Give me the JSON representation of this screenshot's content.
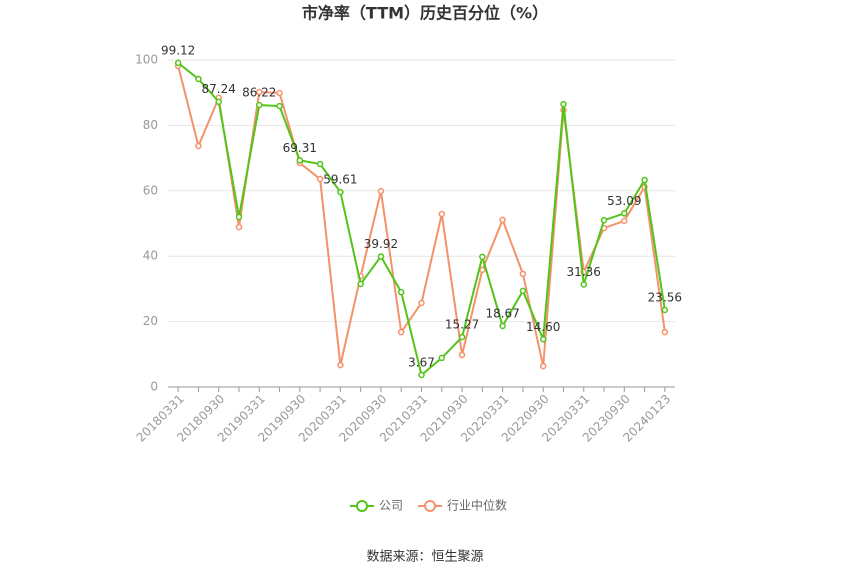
{
  "chart_data": {
    "type": "line",
    "title": "市净率（TTM）历史百分位（%）",
    "categories": [
      "20180331",
      null,
      "20180930",
      null,
      "20190331",
      null,
      "20190930",
      null,
      "20200331",
      null,
      "20200930",
      null,
      "20210331",
      null,
      "20210930",
      null,
      "20220331",
      null,
      "20220930",
      null,
      "20230331",
      null,
      "20230930",
      null,
      "20240123"
    ],
    "series": [
      {
        "name": "公司",
        "color": "#52c41a",
        "values": [
          99.12,
          94.2,
          87.24,
          52,
          86.22,
          85.9,
          69.31,
          68.2,
          59.61,
          31.5,
          39.92,
          29,
          3.67,
          8.9,
          15.27,
          39.8,
          18.67,
          29.4,
          14.6,
          86.5,
          31.36,
          51,
          53.09,
          63.3,
          23.56
        ],
        "value_labels": [
          "99.12",
          null,
          "87.24",
          null,
          "86.22",
          null,
          "69.31",
          null,
          "59.61",
          null,
          "39.92",
          null,
          "3.67",
          null,
          "15.27",
          null,
          "18.67",
          null,
          "14.60",
          null,
          "31.36",
          null,
          "53.09",
          null,
          "23.56"
        ]
      },
      {
        "name": "行业中位数",
        "color": "#f4926b",
        "values": [
          98.2,
          73.7,
          88.4,
          48.9,
          90.2,
          89.9,
          68.5,
          63.6,
          6.7,
          33.9,
          59.9,
          16.8,
          25.7,
          52.9,
          9.8,
          35.8,
          51.1,
          34.6,
          6.4,
          84.7,
          35.2,
          48.6,
          50.8,
          61.2,
          16.8
        ]
      }
    ],
    "ylim": [
      0,
      100
    ],
    "yticks": [
      0,
      20,
      40,
      60,
      80,
      100
    ],
    "grid": true,
    "source": "数据来源：恒生聚源"
  }
}
